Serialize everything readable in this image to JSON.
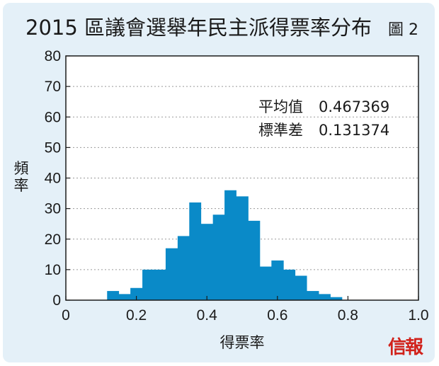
{
  "title": "2015 區議會選舉年民主派得票率分布",
  "figure_label": "圖 2",
  "brand": "信報",
  "stats": {
    "mean_label": "平均值",
    "mean_value": "0.467369",
    "sd_label": "標準差",
    "sd_value": "0.131374"
  },
  "chart_data": {
    "type": "bar",
    "subtype": "histogram",
    "title": "2015 區議會選舉年民主派得票率分布",
    "xlabel": "得票率",
    "ylabel": "頻率",
    "xlim": [
      0,
      1.0
    ],
    "ylim": [
      0,
      80
    ],
    "x_ticks": [
      0,
      0.2,
      0.4,
      0.6,
      0.8,
      1.0
    ],
    "x_tick_labels": [
      "0",
      "0.2",
      "0.4",
      "0.6",
      "0.8",
      "1.0"
    ],
    "y_ticks": [
      0,
      10,
      20,
      30,
      40,
      50,
      60,
      70,
      80
    ],
    "y_tick_labels": [
      "0",
      "10",
      "20",
      "30",
      "40",
      "50",
      "60",
      "70",
      "80"
    ],
    "grid": true,
    "bar_color": "#0a8ac8",
    "bins": [
      {
        "start": 0.117,
        "end": 0.15,
        "value": 3
      },
      {
        "start": 0.15,
        "end": 0.183,
        "value": 2
      },
      {
        "start": 0.183,
        "end": 0.217,
        "value": 4
      },
      {
        "start": 0.217,
        "end": 0.25,
        "value": 10
      },
      {
        "start": 0.25,
        "end": 0.283,
        "value": 10
      },
      {
        "start": 0.283,
        "end": 0.317,
        "value": 17
      },
      {
        "start": 0.317,
        "end": 0.35,
        "value": 21
      },
      {
        "start": 0.35,
        "end": 0.383,
        "value": 32
      },
      {
        "start": 0.383,
        "end": 0.417,
        "value": 25
      },
      {
        "start": 0.417,
        "end": 0.45,
        "value": 28
      },
      {
        "start": 0.45,
        "end": 0.483,
        "value": 36
      },
      {
        "start": 0.483,
        "end": 0.517,
        "value": 34
      },
      {
        "start": 0.517,
        "end": 0.55,
        "value": 26
      },
      {
        "start": 0.55,
        "end": 0.583,
        "value": 11
      },
      {
        "start": 0.583,
        "end": 0.617,
        "value": 13
      },
      {
        "start": 0.617,
        "end": 0.65,
        "value": 10
      },
      {
        "start": 0.65,
        "end": 0.683,
        "value": 8
      },
      {
        "start": 0.683,
        "end": 0.717,
        "value": 3
      },
      {
        "start": 0.717,
        "end": 0.75,
        "value": 2
      },
      {
        "start": 0.75,
        "end": 0.783,
        "value": 1
      }
    ]
  }
}
